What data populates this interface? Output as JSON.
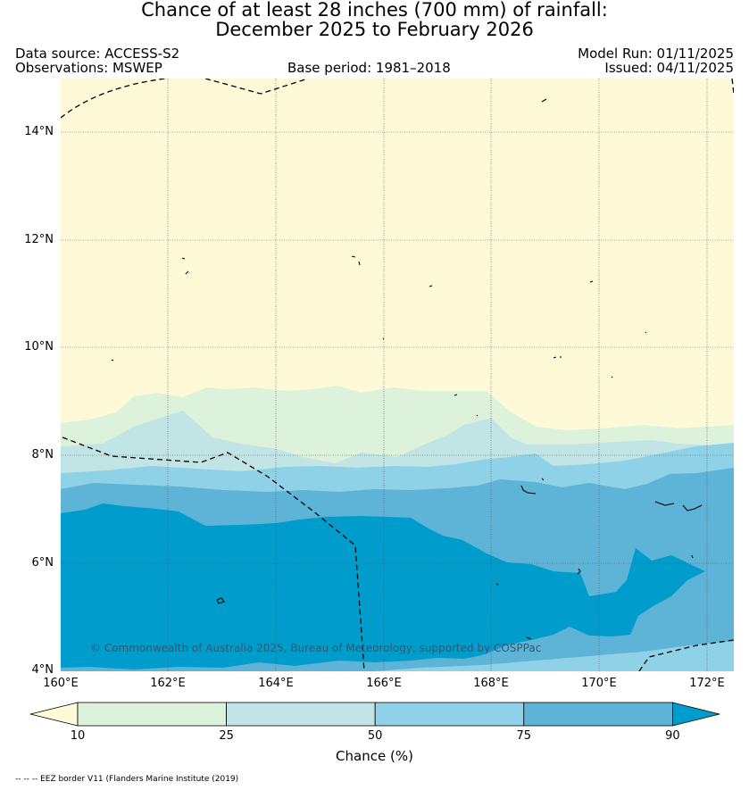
{
  "title": {
    "line1": "Chance of at least 28 inches (700  mm) of rainfall:",
    "line2": "December 2025 to February 2026"
  },
  "header": {
    "data_source": "Data source: ACCESS-S2",
    "observations": "Observations: MSWEP",
    "base_period": "Base period: 1981–2018",
    "model_run": "Model Run: 01/11/2025",
    "issued": "Issued: 04/11/2025"
  },
  "map": {
    "lat_labels": [
      "14°N",
      "12°N",
      "10°N",
      "8°N",
      "6°N",
      "4°N"
    ],
    "lon_labels": [
      "160°E",
      "162°E",
      "164°E",
      "166°E",
      "168°E",
      "170°E",
      "172°E"
    ],
    "copyright": "© Commonwealth of Australia 2025, Bureau of Meteorology, supported by COSPPac"
  },
  "colorbar": {
    "ticks": [
      "10",
      "25",
      "50",
      "75",
      "90"
    ],
    "label": "Chance (%)",
    "colors": {
      "below_10": "#fef9d6",
      "c10_25": "#ddf2da",
      "c25_50": "#c1e4e4",
      "c50_75": "#8fd1e7",
      "c75_90": "#5db4d6",
      "above_90": "#009ccc"
    }
  },
  "footnote": "-- -- -- EEZ border V11 (Flanders Marine Institute (2019)"
}
